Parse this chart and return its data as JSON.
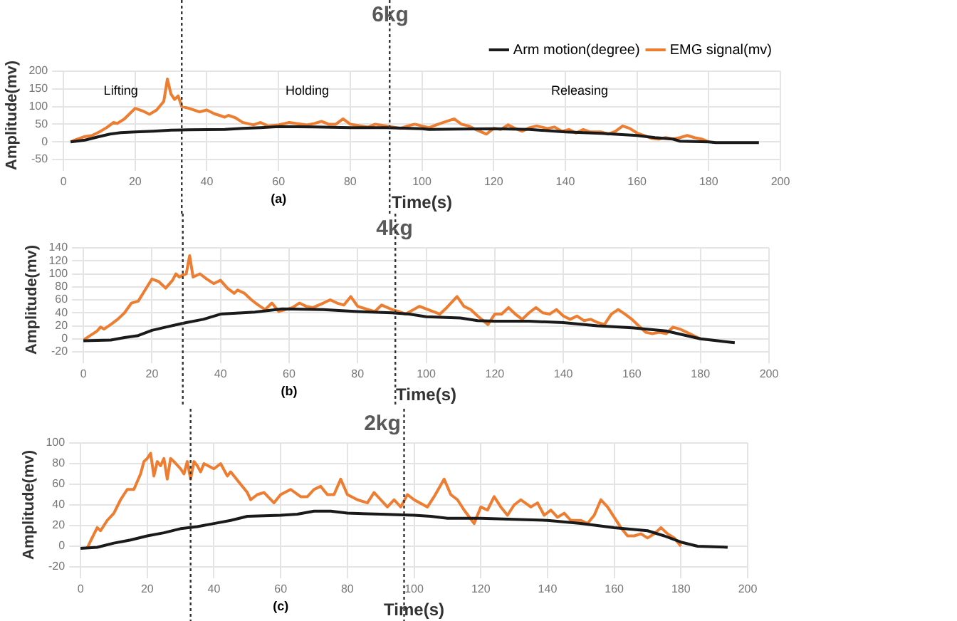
{
  "chart_data": [
    {
      "type": "line",
      "title": "6kg",
      "xlabel": "Time(s)",
      "ylabel": "Amplitude(mv)",
      "xlim": [
        0,
        200
      ],
      "xticks": [
        0,
        20,
        40,
        60,
        80,
        100,
        120,
        140,
        160,
        180,
        200
      ],
      "ylim": [
        -50,
        200
      ],
      "yticks": [
        -50,
        0,
        50,
        100,
        150,
        200
      ],
      "grid": true,
      "legend": "top right",
      "marker": "none",
      "line_style": "solid",
      "series": [
        {
          "name": "Arm motion(degree)",
          "color": "#1a1a1a",
          "x": [
            2,
            6,
            10,
            13,
            16,
            20,
            25,
            30,
            35,
            45,
            50,
            55,
            60,
            70,
            80,
            90,
            100,
            102,
            110,
            120,
            130,
            140,
            150,
            160,
            165,
            170,
            172,
            180,
            182,
            194
          ],
          "values": [
            0,
            5,
            15,
            22,
            26,
            28,
            30,
            33,
            34,
            35,
            38,
            40,
            43,
            42,
            40,
            40,
            37,
            35,
            36,
            37,
            35,
            28,
            24,
            18,
            12,
            8,
            2,
            0,
            -2,
            -2
          ]
        },
        {
          "name": "EMG signal(mv)",
          "color": "#ed7d31",
          "x": [
            2,
            4,
            6,
            8,
            10,
            12,
            14,
            15,
            17,
            20,
            22,
            24,
            26,
            28,
            29,
            30,
            31,
            32,
            33,
            35,
            38,
            40,
            42,
            45,
            46,
            48,
            50,
            53,
            55,
            57,
            60,
            63,
            65,
            68,
            70,
            72,
            74,
            76,
            78,
            80,
            83,
            85,
            87,
            90,
            92,
            94,
            96,
            98,
            100,
            102,
            104,
            106,
            109,
            111,
            113,
            115,
            118,
            120,
            122,
            124,
            126,
            128,
            130,
            132,
            135,
            137,
            139,
            141,
            143,
            145,
            147,
            150,
            152,
            154,
            156,
            158,
            160,
            162,
            164,
            166,
            168,
            170,
            172,
            174,
            176,
            178,
            180
          ],
          "values": [
            0,
            8,
            15,
            18,
            28,
            40,
            55,
            52,
            65,
            95,
            88,
            78,
            90,
            115,
            178,
            135,
            120,
            130,
            100,
            95,
            85,
            90,
            80,
            70,
            75,
            68,
            55,
            48,
            55,
            45,
            48,
            55,
            52,
            48,
            52,
            58,
            50,
            50,
            65,
            50,
            45,
            42,
            50,
            45,
            42,
            38,
            45,
            50,
            45,
            40,
            48,
            55,
            65,
            50,
            45,
            35,
            22,
            38,
            35,
            48,
            38,
            30,
            40,
            45,
            38,
            42,
            30,
            35,
            25,
            35,
            28,
            28,
            22,
            30,
            45,
            38,
            25,
            18,
            10,
            8,
            12,
            8,
            12,
            18,
            12,
            8,
            0
          ]
        }
      ],
      "ref_lines": [
        {
          "axis": "x",
          "value": 33,
          "color": "#333333",
          "line_style": "dotted"
        },
        {
          "axis": "x",
          "value": 91,
          "color": "#333333",
          "line_style": "dotted"
        }
      ],
      "annotations": [
        "Lifting",
        "Holding",
        "Releasing",
        "(a)"
      ]
    },
    {
      "type": "line",
      "title": "4kg",
      "xlabel": "Time(s)",
      "ylabel": "Amplitude(mv)",
      "xlim": [
        0,
        200
      ],
      "xticks": [
        0,
        20,
        40,
        60,
        80,
        100,
        120,
        140,
        160,
        180,
        200
      ],
      "ylim": [
        -20,
        140
      ],
      "yticks": [
        -20,
        0,
        20,
        40,
        60,
        80,
        100,
        120,
        140
      ],
      "grid": true,
      "marker": "none",
      "line_style": "solid",
      "series": [
        {
          "color": "#1a1a1a",
          "x": [
            0,
            8,
            12,
            16,
            20,
            24,
            30,
            35,
            40,
            50,
            58,
            70,
            80,
            90,
            95,
            100,
            110,
            115,
            120,
            130,
            140,
            150,
            160,
            170,
            180,
            185,
            190
          ],
          "values": [
            -3,
            -2,
            2,
            5,
            13,
            18,
            25,
            30,
            38,
            41,
            46,
            45,
            42,
            40,
            38,
            34,
            32,
            28,
            27,
            27,
            25,
            20,
            17,
            12,
            0,
            -3,
            -6
          ]
        },
        {
          "color": "#ed7d31",
          "x": [
            0,
            2,
            4,
            5,
            6,
            8,
            10,
            12,
            14,
            16,
            18,
            20,
            22,
            24,
            26,
            27,
            28,
            29,
            30,
            31,
            32,
            34,
            36,
            38,
            40,
            42,
            44,
            45,
            47,
            49,
            51,
            53,
            55,
            57,
            59,
            61,
            63,
            65,
            67,
            70,
            72,
            74,
            76,
            78,
            80,
            83,
            85,
            87,
            90,
            92,
            94,
            98,
            102,
            104,
            106,
            109,
            111,
            113,
            115,
            118,
            120,
            122,
            124,
            126,
            128,
            130,
            132,
            134,
            136,
            138,
            140,
            142,
            144,
            146,
            148,
            150,
            152,
            154,
            156,
            158,
            160,
            162,
            164,
            166,
            168,
            170,
            172,
            174,
            176,
            178,
            180
          ],
          "values": [
            -2,
            5,
            12,
            18,
            15,
            22,
            30,
            40,
            55,
            58,
            75,
            92,
            88,
            78,
            90,
            100,
            95,
            98,
            100,
            128,
            95,
            100,
            92,
            85,
            90,
            78,
            70,
            75,
            70,
            60,
            52,
            45,
            55,
            42,
            45,
            48,
            55,
            50,
            48,
            55,
            60,
            55,
            52,
            65,
            50,
            45,
            42,
            52,
            45,
            42,
            38,
            50,
            42,
            38,
            48,
            65,
            50,
            45,
            35,
            22,
            38,
            38,
            48,
            38,
            30,
            40,
            48,
            40,
            38,
            45,
            35,
            30,
            35,
            28,
            30,
            25,
            22,
            38,
            45,
            38,
            30,
            20,
            10,
            8,
            10,
            8,
            18,
            15,
            10,
            5,
            0
          ]
        }
      ],
      "ref_lines": [
        {
          "axis": "x",
          "value": 29,
          "color": "#333333",
          "line_style": "dotted"
        },
        {
          "axis": "x",
          "value": 91,
          "color": "#333333",
          "line_style": "dotted"
        }
      ],
      "annotations": [
        "(b)"
      ]
    },
    {
      "type": "line",
      "title": "2kg",
      "xlabel": "Time(s)",
      "ylabel": "Amplitude(mv)",
      "xlim": [
        0,
        200
      ],
      "xticks": [
        0,
        20,
        40,
        60,
        80,
        100,
        120,
        140,
        160,
        180,
        200
      ],
      "ylim": [
        -20,
        100
      ],
      "yticks": [
        -20,
        0,
        20,
        40,
        60,
        80,
        100
      ],
      "grid": true,
      "marker": "none",
      "line_style": "solid",
      "series": [
        {
          "color": "#1a1a1a",
          "x": [
            0,
            5,
            10,
            15,
            20,
            25,
            30,
            35,
            40,
            45,
            50,
            60,
            65,
            70,
            75,
            80,
            90,
            100,
            105,
            110,
            120,
            130,
            140,
            150,
            160,
            170,
            175,
            180,
            185,
            194
          ],
          "values": [
            -2,
            -1,
            3,
            6,
            10,
            13,
            17,
            19,
            22,
            25,
            29,
            30,
            31,
            34,
            34,
            32,
            31,
            30,
            29,
            27,
            27,
            26,
            25,
            22,
            18,
            15,
            10,
            4,
            0,
            -1
          ]
        },
        {
          "color": "#ed7d31",
          "x": [
            2,
            3,
            5,
            6,
            8,
            10,
            12,
            14,
            16,
            18,
            19,
            20,
            21,
            22,
            23,
            24,
            25,
            26,
            27,
            28,
            30,
            31,
            32,
            33,
            34,
            35,
            36,
            37,
            40,
            42,
            44,
            45,
            48,
            50,
            51,
            53,
            55,
            58,
            60,
            63,
            66,
            68,
            70,
            72,
            74,
            76,
            78,
            80,
            83,
            86,
            88,
            90,
            92,
            94,
            96,
            98,
            100,
            104,
            106,
            109,
            111,
            113,
            115,
            118,
            120,
            122,
            124,
            126,
            128,
            130,
            132,
            135,
            137,
            139,
            141,
            143,
            145,
            147,
            150,
            152,
            154,
            156,
            158,
            160,
            162,
            164,
            166,
            168,
            170,
            172,
            174,
            176,
            178,
            180
          ],
          "values": [
            -2,
            5,
            18,
            15,
            25,
            32,
            45,
            55,
            55,
            70,
            82,
            85,
            90,
            68,
            82,
            78,
            85,
            65,
            85,
            82,
            75,
            70,
            82,
            65,
            82,
            78,
            72,
            80,
            75,
            80,
            68,
            72,
            60,
            52,
            45,
            50,
            52,
            42,
            50,
            55,
            48,
            48,
            55,
            58,
            50,
            50,
            65,
            50,
            45,
            42,
            52,
            45,
            38,
            45,
            38,
            50,
            45,
            38,
            48,
            65,
            50,
            45,
            35,
            22,
            38,
            35,
            48,
            38,
            30,
            40,
            45,
            38,
            42,
            30,
            35,
            28,
            32,
            25,
            25,
            22,
            30,
            45,
            38,
            28,
            18,
            10,
            10,
            12,
            8,
            12,
            18,
            12,
            8,
            0
          ]
        }
      ],
      "ref_lines": [
        {
          "axis": "x",
          "value": 33,
          "color": "#333333",
          "line_style": "dotted"
        },
        {
          "axis": "x",
          "value": 97,
          "color": "#333333",
          "line_style": "dotted"
        }
      ],
      "annotations": [
        "(c)"
      ]
    }
  ]
}
